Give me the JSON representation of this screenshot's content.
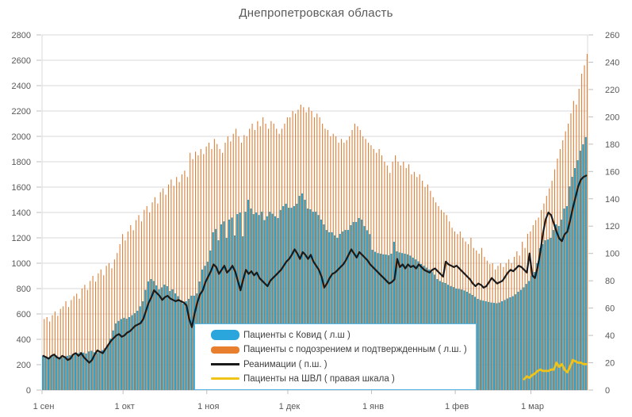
{
  "title": "Днепропетровская область",
  "colors": {
    "covid_bar": "#2d9fc9",
    "suspected_bar": "#dd7e36",
    "reanimation_line": "#1a1a1a",
    "shvl_line": "#f0c318",
    "grid": "#d9d9d9",
    "axis_line": "#bfbfbf",
    "axis_text": "#595959",
    "legend_border": "#56b7e6"
  },
  "chart_data": {
    "type": "combo: bar (2 series, left axis) + line (2 series, right axis), daily values",
    "days": 202,
    "left_axis": {
      "min": 0,
      "max": 2800,
      "step": 200
    },
    "right_axis": {
      "min": 0,
      "max": 260,
      "step": 20
    },
    "x_ticks": [
      {
        "label": "1 сен",
        "day": 0
      },
      {
        "label": "1 окт",
        "day": 30
      },
      {
        "label": "1 ноя",
        "day": 61
      },
      {
        "label": "1 дек",
        "day": 91
      },
      {
        "label": "1 янв",
        "day": 122
      },
      {
        "label": "1 фев",
        "day": 153
      },
      {
        "label": "1 мар",
        "day": 181
      }
    ],
    "series": [
      {
        "name": "Пациенты с Ковид ( л.ш )",
        "type": "bar",
        "axis": "left",
        "color": "#2d9fc9",
        "start_day": 0,
        "values": [
          270,
          265,
          258,
          262,
          268,
          272,
          260,
          255,
          262,
          270,
          275,
          268,
          280,
          290,
          300,
          295,
          288,
          305,
          310,
          298,
          292,
          300,
          315,
          330,
          350,
          405,
          470,
          525,
          545,
          560,
          570,
          562,
          575,
          590,
          606,
          625,
          660,
          700,
          790,
          856,
          875,
          860,
          825,
          794,
          810,
          831,
          819,
          781,
          794,
          762,
          740,
          700,
          681,
          700,
          719,
          744,
          744,
          762,
          856,
          950,
          980,
          1012,
          1100,
          1244,
          1270,
          1181,
          1306,
          1330,
          1200,
          1344,
          1360,
          1219,
          1387,
          1400,
          1212,
          1406,
          1500,
          1431,
          1387,
          1400,
          1380,
          1406,
          1340,
          1370,
          1406,
          1390,
          1370,
          1356,
          1420,
          1450,
          1469,
          1437,
          1437,
          1450,
          1469,
          1531,
          1550,
          1500,
          1431,
          1425,
          1406,
          1406,
          1380,
          1344,
          1306,
          1262,
          1244,
          1244,
          1220,
          1200,
          1231,
          1250,
          1262,
          1262,
          1300,
          1325,
          1325,
          1356,
          1344,
          1293,
          1260,
          1230,
          1106,
          1090,
          1080,
          1075,
          1070,
          1068,
          1063,
          1075,
          1169,
          1094,
          1085,
          1080,
          1075,
          1070,
          1060,
          1044,
          1030,
          1015,
          994,
          980,
          965,
          950,
          930,
          910,
          875,
          860,
          850,
          844,
          830,
          820,
          812,
          800,
          797,
          793,
          785,
          775,
          762,
          750,
          735,
          719,
          710,
          705,
          700,
          695,
          690,
          687,
          685,
          690,
          700,
          710,
          722,
          731,
          740,
          755,
          775,
          790,
          810,
          837,
          860,
          900,
          931,
          1000,
          1119,
          1150,
          1181,
          1187,
          1200,
          1262,
          1306,
          1293,
          1344,
          1431,
          1450,
          1606,
          1681,
          1750,
          1812,
          1887,
          1937,
          1994
        ]
      },
      {
        "name": "Пациенты с подозрением и подтвержденным ( л.ш. )",
        "type": "bar-thin",
        "axis": "left",
        "color": "#dd7e36",
        "start_day": 0,
        "values": [
          560,
          575,
          540,
          590,
          620,
          585,
          640,
          660,
          700,
          655,
          710,
          740,
          760,
          720,
          800,
          830,
          790,
          860,
          900,
          855,
          920,
          950,
          905,
          980,
          1000,
          960,
          1030,
          1080,
          1150,
          1230,
          1180,
          1250,
          1300,
          1260,
          1340,
          1380,
          1330,
          1420,
          1450,
          1400,
          1480,
          1520,
          1470,
          1560,
          1590,
          1540,
          1620,
          1660,
          1610,
          1680,
          1640,
          1700,
          1730,
          1680,
          1870,
          1820,
          1880,
          1850,
          1900,
          1860,
          1920,
          1950,
          1900,
          1980,
          1940,
          1900,
          1870,
          1950,
          2000,
          1960,
          2020,
          2060,
          2000,
          1950,
          2010,
          2000,
          2060,
          2100,
          2050,
          2120,
          2080,
          2150,
          2100,
          2060,
          2120,
          2100,
          2060,
          2020,
          2060,
          2100,
          2150,
          2150,
          2200,
          2180,
          2210,
          2250,
          2230,
          2190,
          2230,
          2200,
          2150,
          2180,
          2150,
          2100,
          2060,
          2050,
          2000,
          2020,
          2000,
          1950,
          1980,
          1950,
          1970,
          2000,
          2050,
          2100,
          2080,
          2050,
          2000,
          1980,
          1950,
          1930,
          1900,
          1870,
          1900,
          1850,
          1800,
          1770,
          1712,
          1800,
          1850,
          1800,
          1770,
          1800,
          1750,
          1780,
          1700,
          1720,
          1680,
          1700,
          1650,
          1600,
          1620,
          1570,
          1520,
          1480,
          1450,
          1420,
          1400,
          1380,
          1330,
          1280,
          1250,
          1230,
          1250,
          1200,
          1170,
          1150,
          1200,
          1120,
          1100,
          1075,
          1120,
          1050,
          1020,
          993,
          1000,
          950,
          980,
          1000,
          970,
          1000,
          1030,
          1000,
          1050,
          1094,
          1060,
          1169,
          1120,
          1231,
          1250,
          1300,
          1340,
          1360,
          1419,
          1470,
          1531,
          1590,
          1650,
          1740,
          1825,
          1900,
          1969,
          2040,
          2100,
          2181,
          2280,
          2250,
          2375,
          2494,
          2560,
          2650
        ]
      },
      {
        "name": "Реанимации ( п.ш. )",
        "type": "line",
        "axis": "right",
        "color": "#1a1a1a",
        "start_day": 0,
        "values": [
          25,
          24,
          23,
          25,
          26,
          24,
          23,
          25,
          24,
          22,
          23,
          26,
          27,
          25,
          27,
          24,
          22,
          20,
          22,
          26,
          29,
          28,
          27,
          30,
          33,
          36,
          38,
          40,
          41,
          39,
          40,
          42,
          43,
          45,
          47,
          48,
          49,
          52,
          58,
          64,
          68,
          73,
          71,
          69,
          66,
          68,
          69,
          67,
          66,
          65,
          66,
          65,
          64,
          62,
          52,
          46,
          56,
          64,
          70,
          73,
          79,
          83,
          87,
          92,
          90,
          85,
          88,
          91,
          86,
          88,
          91,
          87,
          80,
          73,
          81,
          88,
          85,
          87,
          84,
          86,
          82,
          80,
          78,
          76,
          80,
          82,
          84,
          86,
          88,
          91,
          94,
          96,
          99,
          103,
          100,
          96,
          101,
          99,
          96,
          99,
          94,
          91,
          88,
          83,
          75,
          78,
          82,
          85,
          86,
          88,
          90,
          92,
          95,
          99,
          103,
          100,
          97,
          101,
          99,
          97,
          95,
          92,
          90,
          88,
          86,
          84,
          82,
          80,
          78,
          79,
          81,
          96,
          90,
          92,
          89,
          92,
          90,
          91,
          89,
          92,
          90,
          88,
          87,
          86,
          88,
          89,
          87,
          85,
          83,
          94,
          92,
          91,
          90,
          91,
          89,
          87,
          85,
          83,
          81,
          78,
          76,
          78,
          77,
          75,
          76,
          79,
          82,
          80,
          78,
          79,
          80,
          83,
          86,
          88,
          87,
          89,
          91,
          90,
          88,
          86,
          100,
          84,
          82,
          90,
          101,
          115,
          125,
          130,
          128,
          122,
          116,
          111,
          109,
          114,
          116,
          124,
          133,
          141,
          149,
          154,
          156,
          157
        ]
      },
      {
        "name": "Пациенты на ШВЛ ( правая шкала )",
        "type": "line",
        "axis": "right",
        "color": "#f0c318",
        "start_day": 178,
        "values": [
          8,
          10,
          9,
          11,
          12,
          14,
          15,
          14,
          14,
          14,
          15,
          15,
          20,
          17,
          19,
          15,
          13,
          17,
          22,
          21,
          20,
          20,
          19,
          19
        ]
      }
    ]
  }
}
